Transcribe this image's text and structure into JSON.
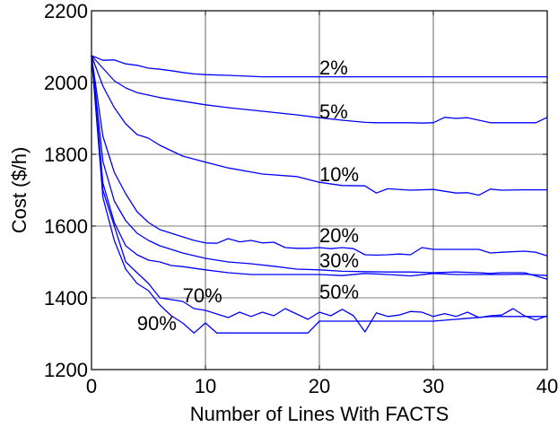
{
  "chart_data": {
    "type": "line",
    "xlabel": "Number of Lines With FACTS",
    "ylabel": "Cost ($/h)",
    "xlim": [
      0,
      40
    ],
    "ylim": [
      1200,
      2200
    ],
    "xticks": [
      0,
      10,
      20,
      30,
      40
    ],
    "yticks": [
      1200,
      1400,
      1600,
      1800,
      2000,
      2200
    ],
    "grid": true,
    "line_color": "#0000ff",
    "series": [
      {
        "name": "2%",
        "label_at": [
          20,
          2022
        ],
        "x": [
          0,
          1,
          2,
          3,
          4,
          5,
          6,
          7,
          8,
          9,
          10,
          12,
          15,
          20,
          25,
          30,
          35,
          40
        ],
        "y": [
          2075,
          2062,
          2063,
          2052,
          2048,
          2040,
          2037,
          2033,
          2028,
          2024,
          2022,
          2020,
          2016,
          2016,
          2016,
          2016,
          2016,
          2016
        ]
      },
      {
        "name": "5%",
        "label_at": [
          20,
          1900
        ],
        "x": [
          0,
          1,
          2,
          3,
          4,
          5,
          6,
          8,
          10,
          12,
          15,
          18,
          20,
          22,
          24,
          25,
          28,
          29,
          30,
          31,
          32,
          33,
          35,
          38,
          39,
          40
        ],
        "y": [
          2075,
          2040,
          2005,
          1985,
          1972,
          1965,
          1958,
          1948,
          1938,
          1930,
          1920,
          1910,
          1902,
          1895,
          1889,
          1888,
          1888,
          1887,
          1888,
          1903,
          1900,
          1902,
          1888,
          1888,
          1888,
          1903
        ]
      },
      {
        "name": "10%",
        "label_at": [
          20,
          1725
        ],
        "x": [
          0,
          1,
          2,
          3,
          4,
          5,
          6,
          7,
          8,
          10,
          12,
          15,
          18,
          20,
          22,
          24,
          25,
          26,
          28,
          30,
          32,
          33,
          34,
          35,
          36,
          38,
          40
        ],
        "y": [
          2075,
          1990,
          1930,
          1885,
          1855,
          1845,
          1825,
          1810,
          1795,
          1778,
          1762,
          1745,
          1738,
          1722,
          1713,
          1712,
          1692,
          1704,
          1700,
          1702,
          1692,
          1693,
          1686,
          1703,
          1700,
          1701,
          1701
        ]
      },
      {
        "name": "20%",
        "label_at": [
          20,
          1555
        ],
        "x": [
          0,
          1,
          2,
          3,
          4,
          5,
          6,
          7,
          8,
          9,
          10,
          11,
          12,
          13,
          14,
          15,
          16,
          17,
          18,
          19,
          20,
          21,
          22,
          23,
          24,
          25,
          26,
          27,
          28,
          29,
          30,
          32,
          34,
          35,
          36,
          38,
          39,
          40
        ],
        "y": [
          2075,
          1850,
          1750,
          1690,
          1640,
          1610,
          1590,
          1580,
          1570,
          1560,
          1553,
          1552,
          1565,
          1556,
          1560,
          1553,
          1555,
          1540,
          1538,
          1538,
          1540,
          1537,
          1540,
          1537,
          1520,
          1519,
          1520,
          1522,
          1520,
          1540,
          1535,
          1535,
          1535,
          1525,
          1527,
          1530,
          1527,
          1517
        ]
      },
      {
        "name": "30%",
        "label_at": [
          20,
          1485
        ],
        "x": [
          0,
          1,
          2,
          3,
          4,
          5,
          6,
          7,
          8,
          10,
          12,
          14,
          16,
          18,
          20,
          22,
          24,
          26,
          28,
          30,
          32,
          34,
          35,
          36,
          38,
          40
        ],
        "y": [
          2075,
          1780,
          1670,
          1615,
          1580,
          1560,
          1545,
          1535,
          1525,
          1510,
          1500,
          1495,
          1488,
          1480,
          1478,
          1474,
          1473,
          1472,
          1472,
          1470,
          1472,
          1470,
          1468,
          1470,
          1470,
          1452
        ]
      },
      {
        "name": "50%",
        "label_at": [
          20,
          1398
        ],
        "x": [
          0,
          1,
          2,
          3,
          4,
          5,
          6,
          7,
          8,
          10,
          12,
          14,
          16,
          18,
          20,
          22,
          24,
          26,
          28,
          30,
          32,
          34,
          36,
          38,
          40
        ],
        "y": [
          2075,
          1720,
          1610,
          1545,
          1520,
          1505,
          1500,
          1490,
          1487,
          1478,
          1470,
          1465,
          1465,
          1465,
          1465,
          1462,
          1468,
          1465,
          1461,
          1468,
          1465,
          1465,
          1465,
          1466,
          1462
        ]
      },
      {
        "name": "70%",
        "label_at": [
          8,
          1388
        ],
        "x": [
          0,
          1,
          2,
          3,
          4,
          5,
          6,
          7,
          8,
          9,
          10,
          11,
          12,
          13,
          14,
          15,
          16,
          17,
          18,
          19,
          20,
          21,
          22,
          23,
          24,
          25,
          26,
          27,
          28,
          29,
          30,
          31,
          32,
          33,
          34,
          35,
          36,
          37,
          38,
          39,
          40
        ],
        "y": [
          2075,
          1700,
          1600,
          1500,
          1470,
          1440,
          1400,
          1395,
          1390,
          1370,
          1365,
          1355,
          1345,
          1360,
          1348,
          1360,
          1350,
          1370,
          1355,
          1340,
          1360,
          1350,
          1368,
          1350,
          1305,
          1358,
          1348,
          1352,
          1362,
          1360,
          1348,
          1356,
          1348,
          1360,
          1345,
          1350,
          1352,
          1370,
          1350,
          1338,
          1350
        ]
      },
      {
        "name": "90%",
        "label_at": [
          4,
          1310
        ],
        "x": [
          0,
          1,
          2,
          3,
          4,
          5,
          6,
          7,
          8,
          9,
          10,
          11,
          12,
          14,
          16,
          18,
          19,
          20,
          22,
          25,
          30,
          35,
          40
        ],
        "y": [
          2075,
          1680,
          1560,
          1480,
          1440,
          1420,
          1380,
          1350,
          1330,
          1302,
          1330,
          1302,
          1302,
          1302,
          1302,
          1302,
          1302,
          1335,
          1335,
          1335,
          1335,
          1348,
          1348
        ]
      }
    ]
  }
}
